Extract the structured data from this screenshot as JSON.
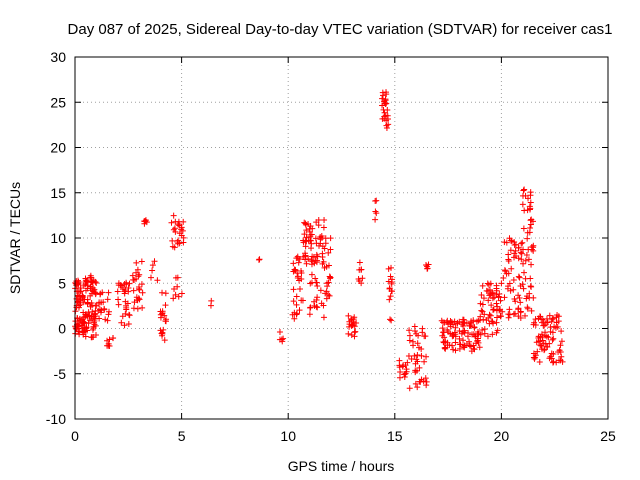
{
  "chart_data": {
    "type": "scatter",
    "title": "Day 087 of 2025, Sidereal Day-to-day VTEC variation (SDTVAR) for receiver cas1",
    "xlabel": "GPS time / hours",
    "ylabel": "SDTVAR / TECUs",
    "xlim": [
      0,
      25
    ],
    "ylim": [
      -10,
      30
    ],
    "xticks": [
      0,
      5,
      10,
      15,
      20,
      25
    ],
    "yticks": [
      -10,
      -5,
      0,
      5,
      10,
      15,
      20,
      25,
      30
    ],
    "grid": true,
    "marker": "+",
    "marker_color": "#ff0000",
    "clusters": [
      {
        "x0": 0.0,
        "x1": 1.0,
        "ymin": -1.0,
        "ymax": 6.0,
        "n": 150
      },
      {
        "x0": 1.0,
        "x1": 1.6,
        "ymin": 0.5,
        "ymax": 4.0,
        "n": 20
      },
      {
        "x0": 1.5,
        "x1": 1.8,
        "ymin": -2.0,
        "ymax": -1.0,
        "n": 8
      },
      {
        "x0": 2.0,
        "x1": 2.6,
        "ymin": 0.0,
        "ymax": 5.5,
        "n": 30
      },
      {
        "x0": 2.7,
        "x1": 3.2,
        "ymin": 2.0,
        "ymax": 7.5,
        "n": 25
      },
      {
        "x0": 3.2,
        "x1": 3.4,
        "ymin": 11.5,
        "ymax": 12.0,
        "n": 6
      },
      {
        "x0": 3.5,
        "x1": 3.9,
        "ymin": 4.5,
        "ymax": 7.5,
        "n": 5
      },
      {
        "x0": 4.0,
        "x1": 4.3,
        "ymin": -1.5,
        "ymax": 4.5,
        "n": 20
      },
      {
        "x0": 4.5,
        "x1": 5.1,
        "ymin": 8.5,
        "ymax": 12.5,
        "n": 25
      },
      {
        "x0": 4.6,
        "x1": 5.1,
        "ymin": 3.0,
        "ymax": 7.0,
        "n": 8
      },
      {
        "x0": 6.3,
        "x1": 6.4,
        "ymin": 2.5,
        "ymax": 3.2,
        "n": 2
      },
      {
        "x0": 8.6,
        "x1": 8.7,
        "ymin": 7.3,
        "ymax": 7.8,
        "n": 2
      },
      {
        "x0": 9.6,
        "x1": 9.8,
        "ymin": -1.5,
        "ymax": -0.3,
        "n": 5
      },
      {
        "x0": 10.2,
        "x1": 10.7,
        "ymin": 1.0,
        "ymax": 8.0,
        "n": 30
      },
      {
        "x0": 10.7,
        "x1": 11.7,
        "ymin": 7.0,
        "ymax": 12.0,
        "n": 60
      },
      {
        "x0": 11.0,
        "x1": 11.7,
        "ymin": 1.0,
        "ymax": 6.0,
        "n": 20
      },
      {
        "x0": 11.7,
        "x1": 12.0,
        "ymin": 3.0,
        "ymax": 10.0,
        "n": 20
      },
      {
        "x0": 12.8,
        "x1": 13.2,
        "ymin": -1.0,
        "ymax": 1.5,
        "n": 20
      },
      {
        "x0": 13.3,
        "x1": 13.5,
        "ymin": 5.0,
        "ymax": 8.0,
        "n": 8
      },
      {
        "x0": 14.0,
        "x1": 14.2,
        "ymin": 10.7,
        "ymax": 14.6,
        "n": 5
      },
      {
        "x0": 14.4,
        "x1": 14.7,
        "ymin": 22.0,
        "ymax": 26.2,
        "n": 25
      },
      {
        "x0": 14.7,
        "x1": 14.9,
        "ymin": 0.8,
        "ymax": 7.5,
        "n": 15
      },
      {
        "x0": 15.2,
        "x1": 15.6,
        "ymin": -5.5,
        "ymax": -3.5,
        "n": 15
      },
      {
        "x0": 15.6,
        "x1": 16.5,
        "ymin": -7.0,
        "ymax": 0.5,
        "n": 40
      },
      {
        "x0": 16.3,
        "x1": 16.6,
        "ymin": 6.5,
        "ymax": 7.3,
        "n": 5
      },
      {
        "x0": 17.2,
        "x1": 19.0,
        "ymin": -2.5,
        "ymax": 1.0,
        "n": 100
      },
      {
        "x0": 19.0,
        "x1": 20.0,
        "ymin": -1.0,
        "ymax": 5.0,
        "n": 60
      },
      {
        "x0": 20.0,
        "x1": 21.0,
        "ymin": 1.0,
        "ymax": 10.0,
        "n": 60
      },
      {
        "x0": 21.0,
        "x1": 21.5,
        "ymin": 1.0,
        "ymax": 15.5,
        "n": 50
      },
      {
        "x0": 21.5,
        "x1": 22.9,
        "ymin": -3.8,
        "ymax": 1.5,
        "n": 80
      }
    ]
  }
}
